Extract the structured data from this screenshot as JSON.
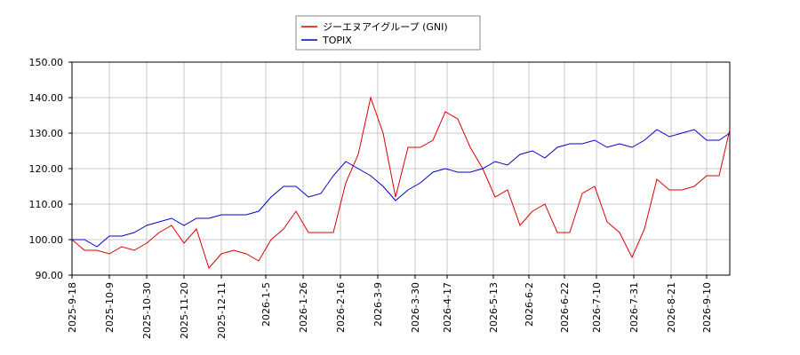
{
  "chart_data": {
    "type": "line",
    "x": [
      "2025-9-18",
      "2025-9-25",
      "2025-10-2",
      "2025-10-9",
      "2025-10-16",
      "2025-10-23",
      "2025-10-30",
      "2025-11-6",
      "2025-11-13",
      "2025-11-20",
      "2025-11-27",
      "2025-12-4",
      "2025-12-11",
      "2025-12-18",
      "2025-12-25",
      "2026-1-1",
      "2026-1-8",
      "2026-1-15",
      "2026-1-22",
      "2026-1-29",
      "2026-2-5",
      "2026-2-12",
      "2026-2-19",
      "2026-2-26",
      "2026-3-5",
      "2026-3-12",
      "2026-3-19",
      "2026-3-26",
      "2026-4-2",
      "2026-4-9",
      "2026-4-16",
      "2026-4-23",
      "2026-4-30",
      "2026-5-7",
      "2026-5-14",
      "2026-5-21",
      "2026-5-28",
      "2026-6-4",
      "2026-6-11",
      "2026-6-18",
      "2026-6-25",
      "2026-7-2",
      "2026-7-9",
      "2026-7-16",
      "2026-7-23",
      "2026-7-30",
      "2026-8-6",
      "2026-8-13",
      "2026-8-20",
      "2026-8-27",
      "2026-9-3",
      "2026-9-10",
      "2026-9-17",
      "2026-9-23"
    ],
    "series": [
      {
        "name": "ジーエヌアイグループ (GNI)",
        "color": "#dd0000",
        "values": [
          100,
          97,
          97,
          96,
          98,
          97,
          99,
          102,
          104,
          99,
          103,
          92,
          96,
          97,
          96,
          94,
          100,
          103,
          108,
          102,
          102,
          102,
          116,
          124,
          140,
          130,
          112,
          126,
          126,
          128,
          136,
          134,
          126,
          120,
          112,
          114,
          104,
          108,
          110,
          102,
          102,
          113,
          115,
          105,
          102,
          95,
          103,
          117,
          114,
          114,
          115,
          118,
          118,
          131
        ]
      },
      {
        "name": "TOPIX",
        "color": "#0000cc",
        "values": [
          100,
          100,
          98,
          101,
          101,
          102,
          104,
          105,
          106,
          104,
          106,
          106,
          107,
          107,
          107,
          108,
          112,
          115,
          115,
          112,
          113,
          118,
          122,
          120,
          118,
          115,
          111,
          114,
          116,
          119,
          120,
          119,
          119,
          120,
          122,
          121,
          124,
          125,
          123,
          126,
          127,
          127,
          128,
          126,
          127,
          126,
          128,
          131,
          129,
          130,
          131,
          128,
          128,
          130
        ]
      }
    ],
    "xlim": [
      "2025-9-18",
      "2026-9-23"
    ],
    "xticks": [
      "2025-9-18",
      "2025-10-9",
      "2025-10-30",
      "2025-11-20",
      "2025-12-11",
      "2026-1-5",
      "2026-1-26",
      "2026-2-16",
      "2026-3-9",
      "2026-3-30",
      "2026-4-17",
      "2026-5-13",
      "2026-6-2",
      "2026-6-22",
      "2026-7-10",
      "2026-7-31",
      "2026-8-21",
      "2026-9-10"
    ],
    "ylim": [
      90,
      150
    ],
    "yticks": [
      {
        "value": 90,
        "label": "90.00"
      },
      {
        "value": 100,
        "label": "100.00"
      },
      {
        "value": 110,
        "label": "110.00"
      },
      {
        "value": 120,
        "label": "120.00"
      },
      {
        "value": 130,
        "label": "130.00"
      },
      {
        "value": 140,
        "label": "140.00"
      },
      {
        "value": 150,
        "label": "150.00"
      }
    ],
    "grid": true
  }
}
